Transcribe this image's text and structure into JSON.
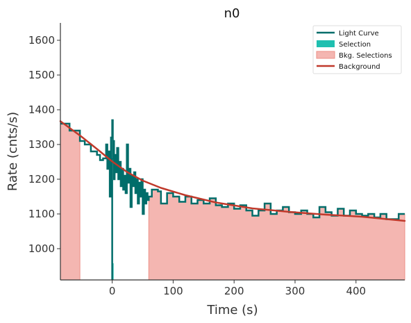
{
  "chart_data": {
    "type": "line",
    "title": "n0",
    "xlabel": "Time (s)",
    "ylabel": "Rate (cnts/s)",
    "xlim": [
      -85,
      480
    ],
    "ylim": [
      910,
      1650
    ],
    "xticks": [
      0,
      100,
      200,
      300,
      400
    ],
    "yticks": [
      1000,
      1100,
      1200,
      1300,
      1400,
      1500,
      1600
    ],
    "legend": {
      "position": "top-right",
      "entries": [
        {
          "label": "Light Curve",
          "kind": "line",
          "color": "#006d6a"
        },
        {
          "label": "Selection",
          "kind": "patch",
          "color": "#1fbfb0"
        },
        {
          "label": "Bkg. Selections",
          "kind": "patch",
          "color": "#f4b6b1"
        },
        {
          "label": "Background",
          "kind": "line",
          "color": "#c0392b"
        }
      ]
    },
    "light_curve": {
      "name": "Light Curve",
      "color": "#006d6a",
      "x": [
        -85,
        -70,
        -53,
        -45,
        -35,
        -25,
        -20,
        -15,
        -10,
        -8,
        -6,
        -4,
        -2,
        0,
        1,
        2,
        3,
        4,
        5,
        6,
        8,
        10,
        12,
        14,
        16,
        18,
        20,
        22,
        24,
        26,
        28,
        30,
        32,
        34,
        36,
        38,
        40,
        42,
        44,
        46,
        48,
        50,
        52,
        54,
        56,
        58,
        60,
        65,
        75,
        80,
        90,
        100,
        110,
        120,
        130,
        140,
        150,
        160,
        170,
        180,
        190,
        200,
        210,
        220,
        230,
        240,
        250,
        260,
        270,
        280,
        290,
        300,
        310,
        320,
        330,
        340,
        350,
        360,
        370,
        380,
        390,
        400,
        410,
        420,
        430,
        440,
        450,
        460,
        470,
        480
      ],
      "y": [
        1360,
        1340,
        1310,
        1300,
        1280,
        1270,
        1255,
        1260,
        1300,
        1230,
        1280,
        1150,
        1320,
        1370,
        1260,
        1310,
        1200,
        1240,
        1270,
        1220,
        1290,
        1200,
        1250,
        1180,
        1230,
        1170,
        1210,
        1160,
        1300,
        1190,
        1230,
        1120,
        1210,
        1180,
        1220,
        1160,
        1200,
        1130,
        1190,
        1150,
        1200,
        1100,
        1170,
        1130,
        1160,
        1140,
        1150,
        1170,
        1165,
        1130,
        1160,
        1150,
        1135,
        1150,
        1130,
        1140,
        1130,
        1145,
        1125,
        1120,
        1130,
        1115,
        1125,
        1110,
        1095,
        1110,
        1130,
        1100,
        1110,
        1120,
        1105,
        1100,
        1110,
        1100,
        1090,
        1120,
        1105,
        1095,
        1115,
        1095,
        1110,
        1100,
        1095,
        1100,
        1090,
        1100,
        1085,
        1085,
        1100,
        1100
      ]
    },
    "selection": {
      "name": "Selection",
      "color": "#1fbfb0",
      "x_range": [
        0,
        2
      ]
    },
    "background_selections": {
      "name": "Bkg. Selections",
      "color": "#f4b6b1",
      "ranges": [
        [
          -85,
          -53
        ],
        [
          60,
          480
        ]
      ]
    },
    "background": {
      "name": "Background",
      "color": "#c0392b",
      "x": [
        -85,
        -50,
        -20,
        0,
        25,
        50,
        80,
        120,
        170,
        230,
        290,
        350,
        410,
        480
      ],
      "y": [
        1367,
        1322,
        1280,
        1251,
        1220,
        1196,
        1175,
        1154,
        1133,
        1116,
        1106,
        1098,
        1092,
        1080
      ]
    }
  }
}
